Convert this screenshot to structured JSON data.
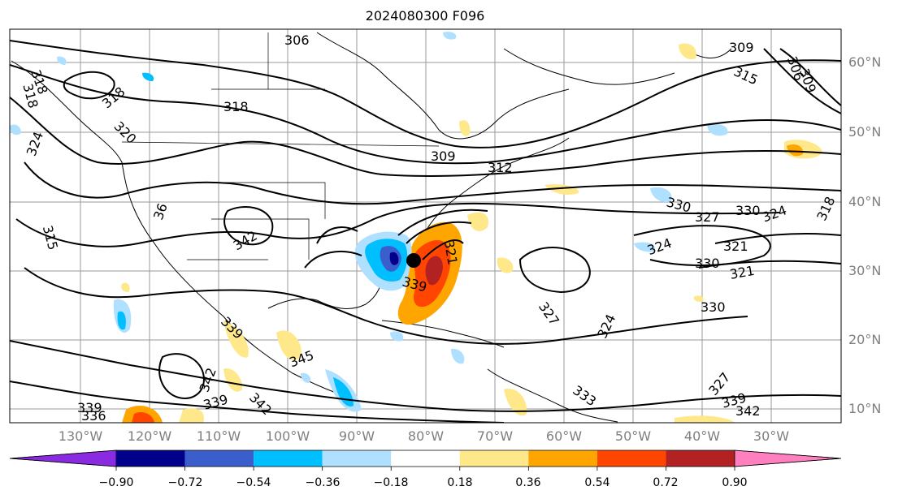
{
  "title": "2024080300 F096",
  "lat_labels": [
    "60°N",
    "50°N",
    "40°N",
    "30°N",
    "20°N",
    "10°N"
  ],
  "lon_labels": [
    "130°W",
    "120°W",
    "110°W",
    "100°W",
    "90°W",
    "80°W",
    "70°W",
    "60°W",
    "50°W",
    "40°W",
    "30°W"
  ],
  "colorbar": {
    "ticks": [
      "−0.90",
      "−0.72",
      "−0.54",
      "−0.36",
      "−0.18",
      "0.18",
      "0.36",
      "0.54",
      "0.72",
      "0.90"
    ],
    "colors": [
      "#8a2be2",
      "#00008b",
      "#3a5fcd",
      "#00bfff",
      "#b0e0ff",
      "#ffffff",
      "#ffe88a",
      "#ffa500",
      "#ff4500",
      "#b22222",
      "#ff7fbf"
    ]
  },
  "contour_labels": [
    "306",
    "309",
    "309",
    "306",
    "309",
    "315",
    "318",
    "318",
    "318",
    "315",
    "318",
    "324",
    "321",
    "36",
    "342",
    "315",
    "309",
    "312",
    "330",
    "327",
    "330",
    "324",
    "321",
    "324",
    "327",
    "318",
    "321",
    "330",
    "321",
    "330",
    "339",
    "327",
    "324",
    "327",
    "330",
    "339",
    "342",
    "339",
    "345",
    "342",
    "339",
    "342",
    "336",
    "333",
    "339",
    "342",
    "333",
    "318",
    "320",
    "321"
  ]
}
